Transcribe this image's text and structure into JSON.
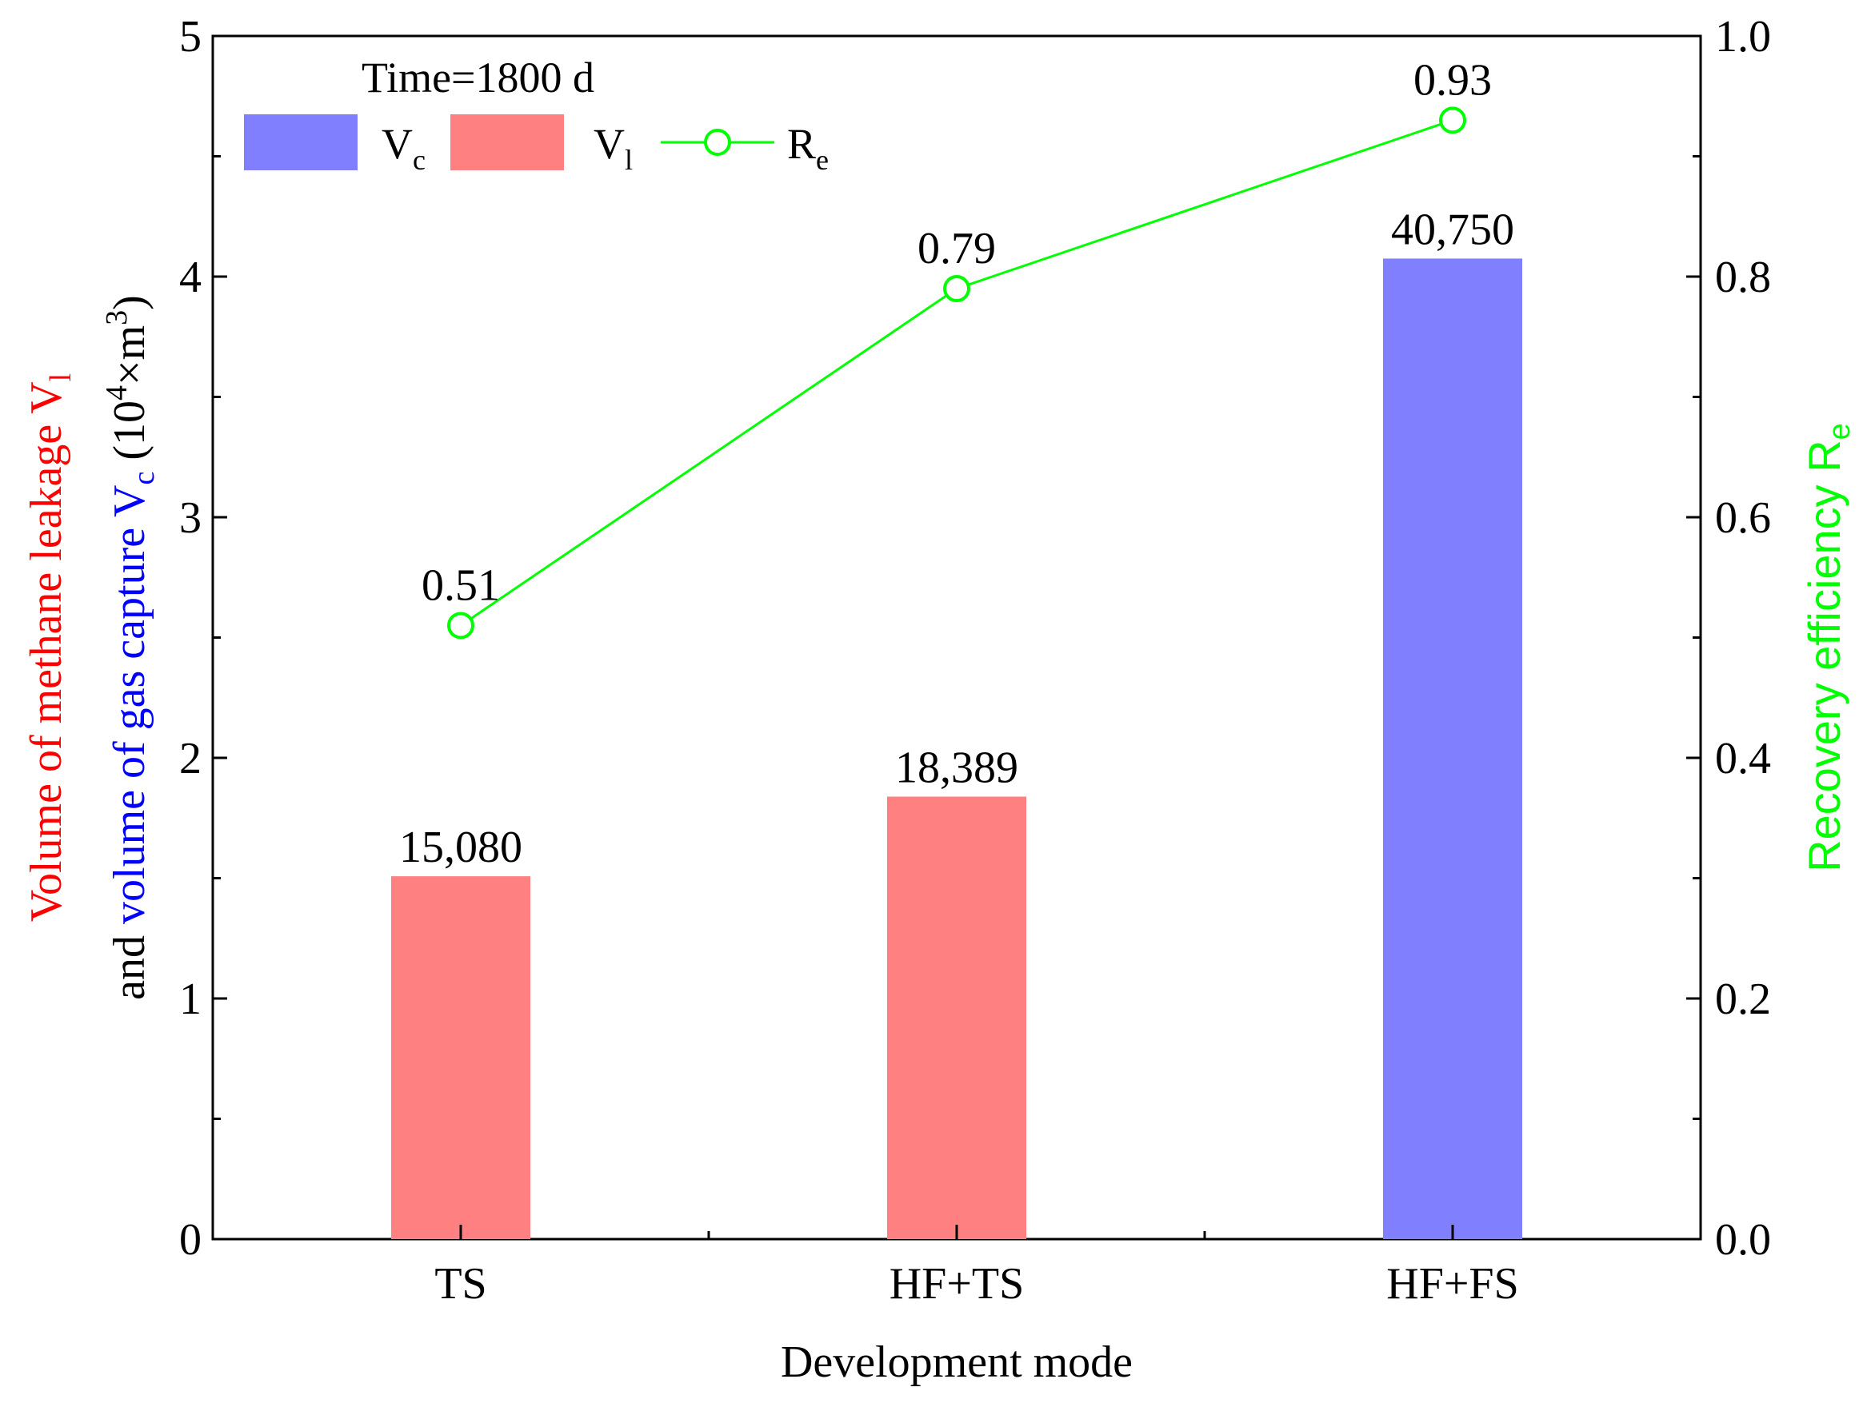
{
  "chart_data": {
    "type": "bar+line",
    "categories": [
      "TS",
      "HF+TS",
      "HF+FS"
    ],
    "bars": {
      "values": [
        1.508,
        1.8389,
        4.075
      ],
      "labels": [
        "15,080",
        "18,389",
        "40,750"
      ],
      "series": [
        "Vl",
        "Vl",
        "Vc"
      ]
    },
    "line": {
      "name": "Re",
      "values": [
        0.51,
        0.79,
        0.93
      ],
      "labels": [
        "0.51",
        "0.79",
        "0.93"
      ]
    },
    "xlabel": "Development mode",
    "ylabel_left": {
      "line1": {
        "p1": "Volume of methane leakage ",
        "p2": "V",
        "sub": "l"
      },
      "line2": {
        "p1": "and ",
        "p2": "volume of gas capture ",
        "p3": "V",
        "sub": "c",
        "p4": " (10",
        "sup": "4",
        "p5": "×m",
        "sup2": "3",
        "p6": ")"
      }
    },
    "ylabel_right": {
      "main": "Recovery efficiency R",
      "sub": "e"
    },
    "ylim_left": [
      0,
      5
    ],
    "ylim_right": [
      0.0,
      1.0
    ],
    "yticks_left": [
      "0",
      "1",
      "2",
      "3",
      "4",
      "5"
    ],
    "yticks_right": [
      "0.0",
      "0.2",
      "0.4",
      "0.6",
      "0.8",
      "1.0"
    ],
    "legend": {
      "title": "Time=1800 d",
      "items": [
        {
          "main": "V",
          "sub": "c"
        },
        {
          "main": "V",
          "sub": "l"
        },
        {
          "main": "R",
          "sub": "e"
        }
      ],
      "placement": "top-left"
    },
    "colors": {
      "Vc": "#8080ff",
      "Vl": "#ff8080",
      "Re": "#00ff00",
      "left_red": "#ff0000",
      "left_blue": "#0000ff"
    }
  }
}
